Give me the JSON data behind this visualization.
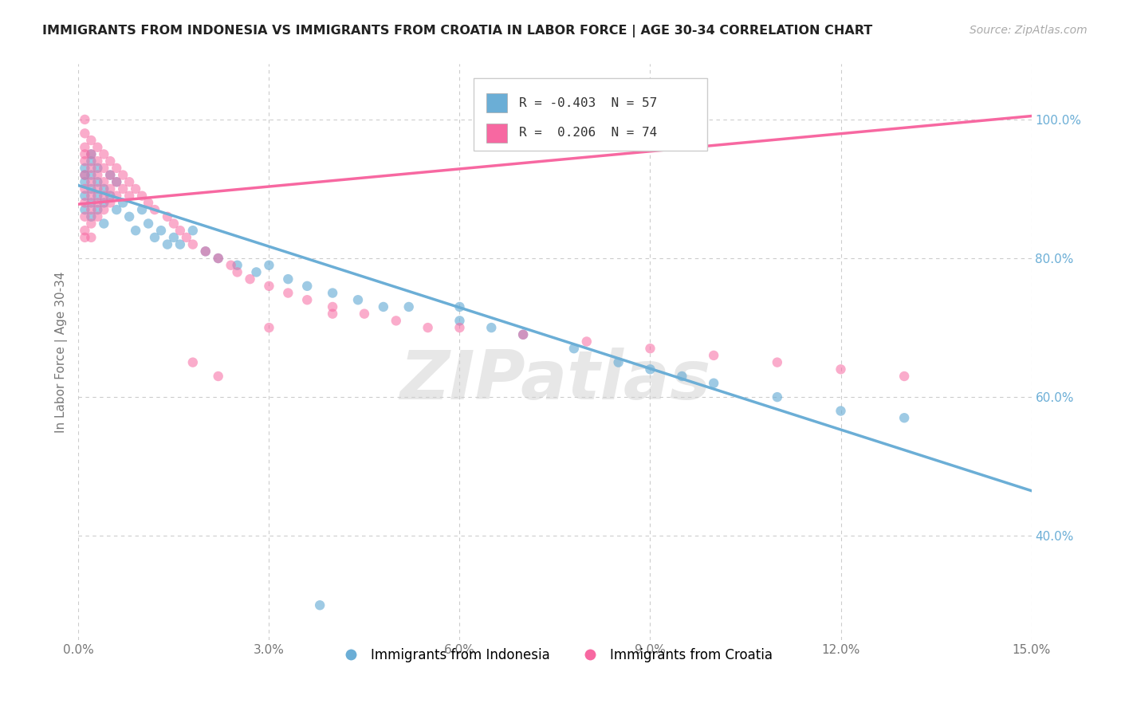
{
  "title": "IMMIGRANTS FROM INDONESIA VS IMMIGRANTS FROM CROATIA IN LABOR FORCE | AGE 30-34 CORRELATION CHART",
  "source": "Source: ZipAtlas.com",
  "ylabel": "In Labor Force | Age 30-34",
  "xlim": [
    0.0,
    0.15
  ],
  "ylim": [
    0.25,
    1.08
  ],
  "xticks": [
    0.0,
    0.03,
    0.06,
    0.09,
    0.12,
    0.15
  ],
  "xtick_labels": [
    "0.0%",
    "3.0%",
    "6.0%",
    "9.0%",
    "12.0%",
    "15.0%"
  ],
  "yticks": [
    0.4,
    0.6,
    0.8,
    1.0
  ],
  "ytick_labels": [
    "40.0%",
    "60.0%",
    "80.0%",
    "100.0%"
  ],
  "color_indonesia": "#6baed6",
  "color_croatia": "#f768a1",
  "R_indonesia": -0.403,
  "N_indonesia": 57,
  "R_croatia": 0.206,
  "N_croatia": 74,
  "watermark": "ZIPatlas",
  "legend_indonesia": "Immigrants from Indonesia",
  "legend_croatia": "Immigrants from Croatia",
  "trend_indo_x0": 0.0,
  "trend_indo_y0": 0.905,
  "trend_indo_x1": 0.15,
  "trend_indo_y1": 0.465,
  "trend_croa_x0": 0.0,
  "trend_croa_y0": 0.878,
  "trend_croa_x1": 0.15,
  "trend_croa_y1": 1.005,
  "indonesia_x": [
    0.001,
    0.001,
    0.001,
    0.001,
    0.001,
    0.002,
    0.002,
    0.002,
    0.002,
    0.002,
    0.002,
    0.003,
    0.003,
    0.003,
    0.003,
    0.004,
    0.004,
    0.004,
    0.005,
    0.005,
    0.006,
    0.006,
    0.007,
    0.008,
    0.009,
    0.01,
    0.011,
    0.012,
    0.013,
    0.014,
    0.015,
    0.016,
    0.018,
    0.02,
    0.022,
    0.025,
    0.028,
    0.03,
    0.033,
    0.036,
    0.04,
    0.044,
    0.048,
    0.052,
    0.06,
    0.065,
    0.07,
    0.078,
    0.085,
    0.09,
    0.095,
    0.1,
    0.11,
    0.12,
    0.13,
    0.06,
    0.038
  ],
  "indonesia_y": [
    0.93,
    0.91,
    0.89,
    0.87,
    0.92,
    0.94,
    0.9,
    0.88,
    0.86,
    0.92,
    0.95,
    0.91,
    0.89,
    0.87,
    0.93,
    0.9,
    0.88,
    0.85,
    0.92,
    0.89,
    0.91,
    0.87,
    0.88,
    0.86,
    0.84,
    0.87,
    0.85,
    0.83,
    0.84,
    0.82,
    0.83,
    0.82,
    0.84,
    0.81,
    0.8,
    0.79,
    0.78,
    0.79,
    0.77,
    0.76,
    0.75,
    0.74,
    0.73,
    0.73,
    0.71,
    0.7,
    0.69,
    0.67,
    0.65,
    0.64,
    0.63,
    0.62,
    0.6,
    0.58,
    0.57,
    0.73,
    0.3
  ],
  "croatia_x": [
    0.001,
    0.001,
    0.001,
    0.001,
    0.001,
    0.001,
    0.001,
    0.001,
    0.001,
    0.001,
    0.001,
    0.002,
    0.002,
    0.002,
    0.002,
    0.002,
    0.002,
    0.002,
    0.002,
    0.003,
    0.003,
    0.003,
    0.003,
    0.003,
    0.003,
    0.004,
    0.004,
    0.004,
    0.004,
    0.004,
    0.005,
    0.005,
    0.005,
    0.005,
    0.006,
    0.006,
    0.006,
    0.007,
    0.007,
    0.008,
    0.008,
    0.009,
    0.01,
    0.011,
    0.012,
    0.014,
    0.015,
    0.016,
    0.017,
    0.018,
    0.02,
    0.022,
    0.024,
    0.025,
    0.027,
    0.03,
    0.033,
    0.036,
    0.04,
    0.045,
    0.05,
    0.055,
    0.06,
    0.07,
    0.08,
    0.09,
    0.1,
    0.11,
    0.12,
    0.13,
    0.018,
    0.022,
    0.03,
    0.04
  ],
  "croatia_y": [
    1.0,
    0.98,
    0.96,
    0.94,
    0.92,
    0.9,
    0.88,
    0.86,
    0.84,
    0.83,
    0.95,
    0.97,
    0.95,
    0.93,
    0.91,
    0.89,
    0.87,
    0.85,
    0.83,
    0.96,
    0.94,
    0.92,
    0.9,
    0.88,
    0.86,
    0.95,
    0.93,
    0.91,
    0.89,
    0.87,
    0.94,
    0.92,
    0.9,
    0.88,
    0.93,
    0.91,
    0.89,
    0.92,
    0.9,
    0.91,
    0.89,
    0.9,
    0.89,
    0.88,
    0.87,
    0.86,
    0.85,
    0.84,
    0.83,
    0.82,
    0.81,
    0.8,
    0.79,
    0.78,
    0.77,
    0.76,
    0.75,
    0.74,
    0.73,
    0.72,
    0.71,
    0.7,
    0.7,
    0.69,
    0.68,
    0.67,
    0.66,
    0.65,
    0.64,
    0.63,
    0.65,
    0.63,
    0.7,
    0.72
  ],
  "background_color": "#ffffff",
  "grid_color": "#cccccc"
}
